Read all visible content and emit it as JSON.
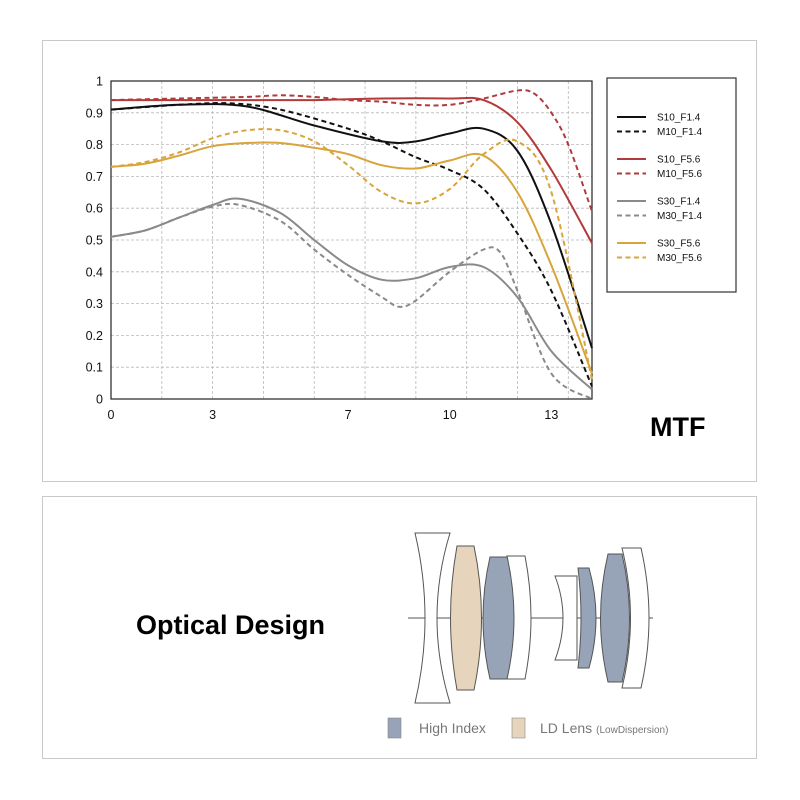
{
  "mtf_section": {
    "title": "MTF"
  },
  "optics_section": {
    "title": "Optical Design",
    "legend": [
      {
        "label": "High Index",
        "note": "",
        "color": "#97a3b6"
      },
      {
        "label": "LD Lens",
        "note": "(LowDispersion)",
        "color": "#e6d5bc"
      }
    ]
  },
  "chart_data": {
    "type": "line",
    "title": "MTF",
    "xlabel": "",
    "ylabel": "",
    "xlim": [
      0,
      14.2
    ],
    "ylim": [
      0,
      1
    ],
    "grid": true,
    "legend_position": "right",
    "x_ticks": [
      0,
      3,
      7,
      10,
      13
    ],
    "y_ticks": [
      0,
      0.1,
      0.2,
      0.3,
      0.4,
      0.5,
      0.6,
      0.7,
      0.8,
      0.9,
      1
    ],
    "x_tick_labels": [
      "0",
      "3",
      "7",
      "10",
      "13"
    ],
    "y_tick_labels": [
      "0",
      "0.1",
      "0.2",
      "0.3",
      "0.4",
      "0.5",
      "0.6",
      "0.7",
      "0.8",
      "0.9",
      "1"
    ],
    "series": [
      {
        "name": "S10_F1.4",
        "color": "#111111",
        "dash": false,
        "x": [
          0,
          2,
          4,
          6,
          8,
          9,
          10,
          11,
          12,
          13,
          14.2
        ],
        "y": [
          0.91,
          0.925,
          0.92,
          0.86,
          0.81,
          0.81,
          0.835,
          0.85,
          0.78,
          0.55,
          0.16
        ]
      },
      {
        "name": "M10_F1.4",
        "color": "#111111",
        "dash": true,
        "x": [
          0,
          2,
          3.5,
          5,
          7,
          8,
          9,
          10,
          11,
          12,
          13,
          14.2
        ],
        "y": [
          0.91,
          0.925,
          0.93,
          0.91,
          0.85,
          0.81,
          0.76,
          0.72,
          0.66,
          0.52,
          0.34,
          0.04
        ]
      },
      {
        "name": "S10_F5.6",
        "color": "#b33a3a",
        "dash": false,
        "x": [
          0,
          2,
          4,
          6,
          8,
          10,
          11,
          12,
          13,
          14.2
        ],
        "y": [
          0.94,
          0.94,
          0.94,
          0.94,
          0.945,
          0.945,
          0.94,
          0.87,
          0.72,
          0.49
        ]
      },
      {
        "name": "M10_F5.6",
        "color": "#b33a3a",
        "dash": true,
        "x": [
          0,
          2,
          4,
          5,
          6,
          7,
          8,
          9,
          10,
          11,
          12,
          12.5,
          13,
          13.5,
          14.2
        ],
        "y": [
          0.94,
          0.945,
          0.95,
          0.955,
          0.95,
          0.94,
          0.935,
          0.925,
          0.925,
          0.945,
          0.97,
          0.96,
          0.9,
          0.8,
          0.59
        ]
      },
      {
        "name": "S30_F1.4",
        "color": "#8a8a8a",
        "dash": false,
        "x": [
          0,
          1,
          2,
          3,
          3.8,
          5,
          6,
          7,
          8,
          9,
          10,
          11,
          12,
          13,
          14.2
        ],
        "y": [
          0.51,
          0.53,
          0.57,
          0.61,
          0.63,
          0.585,
          0.5,
          0.42,
          0.375,
          0.38,
          0.415,
          0.415,
          0.32,
          0.15,
          0.03
        ]
      },
      {
        "name": "M30_F1.4",
        "color": "#8a8a8a",
        "dash": true,
        "x": [
          0,
          1,
          2,
          3,
          3.8,
          5,
          6,
          7,
          8,
          8.5,
          9,
          10,
          11,
          11.5,
          12,
          13,
          14.2
        ],
        "y": [
          0.51,
          0.53,
          0.57,
          0.605,
          0.61,
          0.56,
          0.47,
          0.39,
          0.32,
          0.29,
          0.31,
          0.4,
          0.47,
          0.46,
          0.34,
          0.08,
          0.0
        ]
      },
      {
        "name": "S30_F5.6",
        "color": "#d9a43a",
        "dash": false,
        "x": [
          0,
          1,
          2,
          3,
          4,
          5,
          6,
          7,
          8,
          9,
          10,
          11,
          12,
          13,
          14.2
        ],
        "y": [
          0.73,
          0.74,
          0.765,
          0.795,
          0.805,
          0.805,
          0.79,
          0.77,
          0.735,
          0.725,
          0.75,
          0.765,
          0.65,
          0.42,
          0.08
        ]
      },
      {
        "name": "M30_F5.6",
        "color": "#d9a43a",
        "dash": true,
        "x": [
          0,
          1,
          2,
          3,
          4,
          5,
          6,
          7,
          8,
          9,
          10,
          11,
          12,
          13,
          14.2
        ],
        "y": [
          0.73,
          0.745,
          0.775,
          0.82,
          0.845,
          0.845,
          0.81,
          0.735,
          0.65,
          0.615,
          0.66,
          0.77,
          0.81,
          0.65,
          0.06
        ]
      }
    ]
  }
}
